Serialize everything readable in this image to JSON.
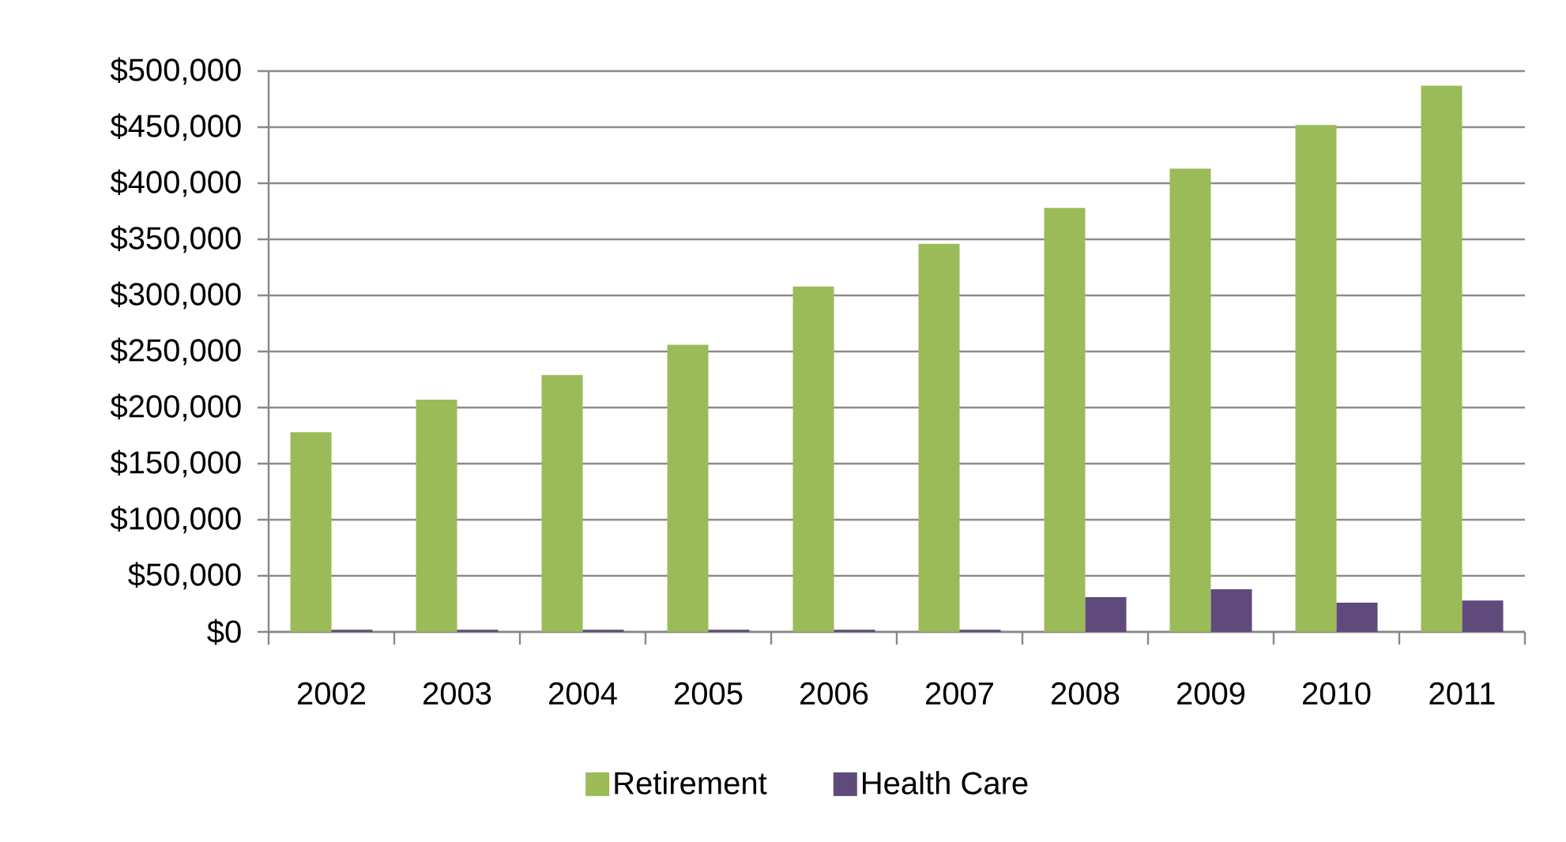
{
  "chart_data": {
    "type": "bar",
    "categories": [
      "2002",
      "2003",
      "2004",
      "2005",
      "2006",
      "2007",
      "2008",
      "2009",
      "2010",
      "2011"
    ],
    "series": [
      {
        "name": "Retirement",
        "color": "#9bbb59",
        "values": [
          178000,
          207000,
          229000,
          256000,
          308000,
          346000,
          378000,
          413000,
          452000,
          487000
        ]
      },
      {
        "name": "Health Care",
        "color": "#604a7b",
        "values": [
          2000,
          2000,
          2000,
          2000,
          2000,
          2000,
          31000,
          38000,
          26000,
          28000
        ]
      }
    ],
    "ylim": [
      0,
      500000
    ],
    "yticks": [
      {
        "value": 0,
        "label": "$0"
      },
      {
        "value": 50000,
        "label": "$50,000"
      },
      {
        "value": 100000,
        "label": "$100,000"
      },
      {
        "value": 150000,
        "label": "$150,000"
      },
      {
        "value": 200000,
        "label": "$200,000"
      },
      {
        "value": 250000,
        "label": "$250,000"
      },
      {
        "value": 300000,
        "label": "$300,000"
      },
      {
        "value": 350000,
        "label": "$350,000"
      },
      {
        "value": 400000,
        "label": "$400,000"
      },
      {
        "value": 450000,
        "label": "$450,000"
      },
      {
        "value": 500000,
        "label": "$500,000"
      }
    ],
    "grid": "y",
    "legend": "bottom"
  }
}
